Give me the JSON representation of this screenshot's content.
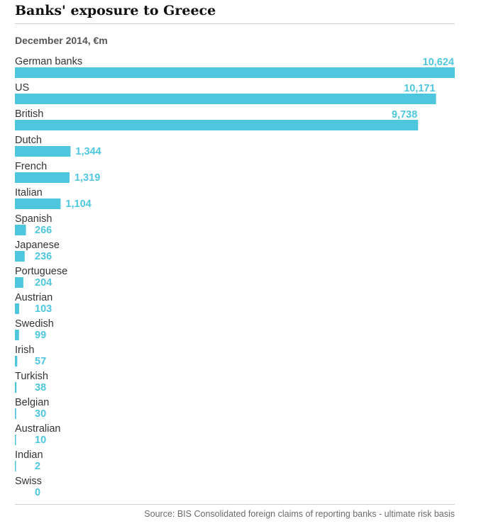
{
  "chart_data": {
    "type": "bar",
    "orientation": "horizontal",
    "title": "Banks' exposure to Greece",
    "subtitle": "December 2014, €m",
    "categories": [
      "German banks",
      "US",
      "British",
      "Dutch",
      "French",
      "Italian",
      "Spanish",
      "Japanese",
      "Portuguese",
      "Austrian",
      "Swedish",
      "Irish",
      "Turkish",
      "Belgian",
      "Australian",
      "Indian",
      "Swiss"
    ],
    "values": [
      10624,
      10171,
      9738,
      1344,
      1319,
      1104,
      266,
      236,
      204,
      103,
      99,
      57,
      38,
      30,
      10,
      2,
      0
    ],
    "value_labels": [
      "10,624",
      "10,171",
      "9,738",
      "1,344",
      "1,319",
      "1,104",
      "266",
      "236",
      "204",
      "103",
      "99",
      "57",
      "38",
      "30",
      "10",
      "2",
      "0"
    ],
    "xlim": [
      0,
      10624
    ],
    "grid": false,
    "legend": "none",
    "bar_color": "#4ec6de",
    "source": "Source: BIS Consolidated foreign claims of reporting banks - ultimate risk basis"
  }
}
